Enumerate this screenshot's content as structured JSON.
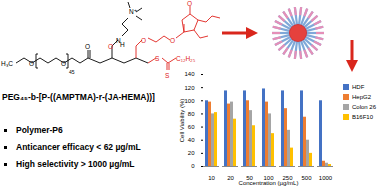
{
  "chart_data": {
    "type": "bar",
    "categories": [
      "10",
      "20",
      "50",
      "100",
      "250",
      "500",
      "1000"
    ],
    "series": [
      {
        "name": "HDF",
        "color": "#4472c4",
        "values": [
          100,
          115,
          115,
          118,
          115,
          115,
          100
        ]
      },
      {
        "name": "HepG2",
        "color": "#ed7d31",
        "values": [
          98,
          95,
          100,
          98,
          88,
          75,
          8
        ]
      },
      {
        "name": "Colon 26",
        "color": "#a5a5a5",
        "values": [
          80,
          98,
          85,
          80,
          55,
          40,
          5
        ]
      },
      {
        "name": "B16F10",
        "color": "#ffc000",
        "values": [
          82,
          72,
          62,
          50,
          28,
          20,
          3
        ]
      }
    ],
    "x_label": "Concentration (µg/mL)",
    "y_label": "Cell Viability (%)",
    "ylim": [
      0,
      140
    ],
    "yticks": [
      0,
      20,
      40,
      60,
      80,
      100,
      120,
      140
    ],
    "grid": false,
    "legend": "right"
  },
  "structure": {
    "formula": "PEG₄₅-b-[P-((AMPTMA)-r-(JA-HEMA))]",
    "labels": [
      "H₃C",
      "O",
      "O",
      "45",
      "O",
      "N",
      "H",
      "N⁺",
      "O",
      "O",
      "O",
      "S",
      "S",
      "C₁₂H₂₅",
      "O"
    ]
  },
  "highlights": [
    "Polymer-P6",
    "Anticancer efficacy < 62 µg/mL",
    "High selectivity > 1000 µg/mL"
  ]
}
